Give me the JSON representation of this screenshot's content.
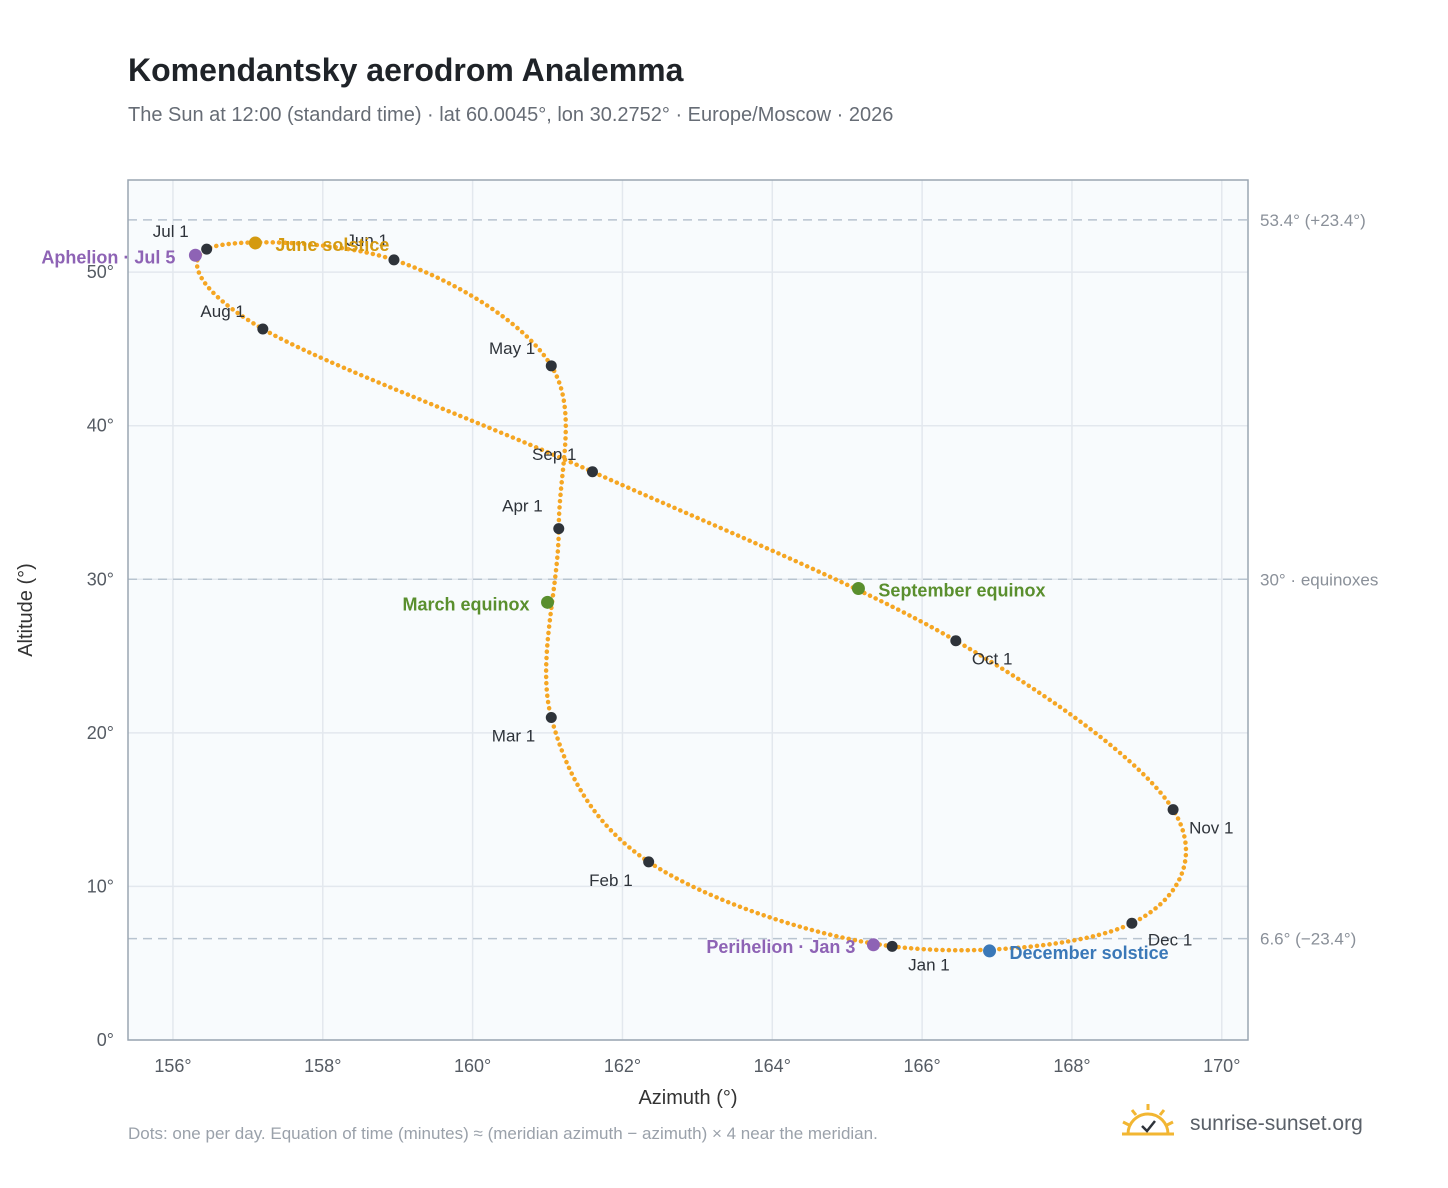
{
  "header": {
    "title": "Komendantsky aerodrom Analemma",
    "subtitle": "The Sun at 12:00 (standard time) · lat 60.0045°, lon 30.2752° · Europe/Moscow · 2026"
  },
  "footer": {
    "note": "Dots: one per day. Equation of time (minutes) ≈ (meridian azimuth − azimuth) × 4 near the meridian.",
    "brand": "sunrise-sunset.org"
  },
  "colors": {
    "curve": "#f5a623",
    "month_dot": "#2e333a",
    "june_solstice": "#d49a10",
    "equinox": "#5a8f2e",
    "december_solstice": "#3a78b8",
    "apsis": "#8e63b5",
    "reference_line": "#b8c4d0",
    "plot_bg": "#f8fbfd",
    "grid": "#e3e8ee"
  },
  "chart_data": {
    "type": "scatter",
    "xlabel": "Azimuth (°)",
    "ylabel": "Altitude (°)",
    "xlim": [
      155.4,
      170.35
    ],
    "ylim": [
      0,
      56
    ],
    "x_ticks": [
      156,
      158,
      160,
      162,
      164,
      166,
      168,
      170
    ],
    "x_tick_labels": [
      "156°",
      "158°",
      "160°",
      "162°",
      "164°",
      "166°",
      "168°",
      "170°"
    ],
    "y_ticks": [
      0,
      10,
      20,
      30,
      40,
      50
    ],
    "y_tick_labels": [
      "0°",
      "10°",
      "20°",
      "30°",
      "40°",
      "50°"
    ],
    "grid": true,
    "reference_lines": [
      {
        "y": 53.4,
        "label": "53.4° (+23.4°)"
      },
      {
        "y": 30.0,
        "label": "30° · equinoxes"
      },
      {
        "y": 6.6,
        "label": "6.6° (−23.4°)"
      }
    ],
    "month_markers": [
      {
        "label": "Jan 1",
        "azimuth": 165.6,
        "altitude": 6.1
      },
      {
        "label": "Feb 1",
        "azimuth": 162.35,
        "altitude": 11.6
      },
      {
        "label": "Mar 1",
        "azimuth": 161.05,
        "altitude": 21.0
      },
      {
        "label": "Apr 1",
        "azimuth": 161.15,
        "altitude": 33.3
      },
      {
        "label": "May 1",
        "azimuth": 161.05,
        "altitude": 43.9
      },
      {
        "label": "Jun 1",
        "azimuth": 158.95,
        "altitude": 50.8
      },
      {
        "label": "Jul 1",
        "azimuth": 156.45,
        "altitude": 51.5
      },
      {
        "label": "Aug 1",
        "azimuth": 157.2,
        "altitude": 46.3
      },
      {
        "label": "Sep 1",
        "azimuth": 161.6,
        "altitude": 37.0
      },
      {
        "label": "Oct 1",
        "azimuth": 166.45,
        "altitude": 26.0
      },
      {
        "label": "Nov 1",
        "azimuth": 169.35,
        "altitude": 15.0
      },
      {
        "label": "Dec 1",
        "azimuth": 168.8,
        "altitude": 7.6
      }
    ],
    "events": [
      {
        "label": "June solstice",
        "azimuth": 157.1,
        "altitude": 51.9
      },
      {
        "label": "March equinox",
        "azimuth": 161.0,
        "altitude": 28.5
      },
      {
        "label": "September equinox",
        "azimuth": 165.15,
        "altitude": 29.4
      },
      {
        "label": "December solstice",
        "azimuth": 166.9,
        "altitude": 5.8
      },
      {
        "label": "Aphelion · Jul 5",
        "azimuth": 156.3,
        "altitude": 51.1
      },
      {
        "label": "Perihelion · Jan 3",
        "azimuth": 165.35,
        "altitude": 6.2
      }
    ]
  }
}
